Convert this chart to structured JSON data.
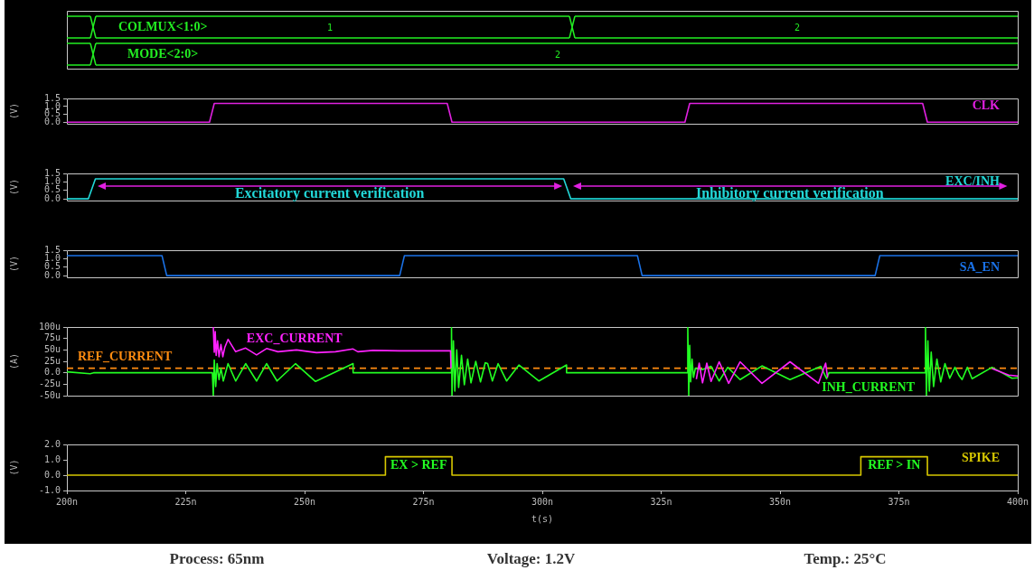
{
  "chart_data": [
    {
      "type": "other",
      "annotations": [
        "COLMUX<1:0>",
        "1",
        "2",
        "MODE<2:0>",
        "2"
      ]
    },
    {
      "type": "line",
      "ylabel": "(V)",
      "xlim": [
        200,
        400
      ],
      "ylim": [
        -0.1,
        1.52
      ],
      "tick_labels": "y",
      "marker": "none",
      "line_style": "solid",
      "yticks": [
        {
          "value": 0,
          "label": "0.0"
        },
        {
          "value": 0.5,
          "label": "0.5"
        },
        {
          "value": 1,
          "label": "1.0"
        },
        {
          "value": 1.5,
          "label": "1.5"
        }
      ],
      "series": [
        {
          "name": "CLK",
          "color": "#e020e0",
          "x": [
            200,
            230,
            231,
            280,
            281,
            330,
            331,
            380,
            381,
            400
          ],
          "values": [
            0,
            0,
            1.2,
            1.2,
            0,
            0,
            1.2,
            1.2,
            0,
            0
          ]
        }
      ]
    },
    {
      "type": "line",
      "ylabel": "(V)",
      "xlim": [
        200,
        400
      ],
      "ylim": [
        -0.1,
        1.52
      ],
      "tick_labels": "y",
      "marker": "none",
      "line_style": "solid",
      "yticks": [
        {
          "value": 0,
          "label": "0.0"
        },
        {
          "value": 0.5,
          "label": "0.5"
        },
        {
          "value": 1,
          "label": "1.0"
        },
        {
          "value": 1.5,
          "label": "1.5"
        }
      ],
      "annotations": [
        "Excitatory current verification",
        "Inhibitory current verification"
      ],
      "series": [
        {
          "name": "EXC/INH",
          "color": "#22d8d8",
          "x": [
            200,
            204.5,
            206,
            304.5,
            306,
            400
          ],
          "values": [
            0,
            0,
            1.2,
            1.2,
            0,
            0
          ]
        }
      ]
    },
    {
      "type": "line",
      "ylabel": "(V)",
      "xlim": [
        200,
        400
      ],
      "ylim": [
        -0.1,
        1.52
      ],
      "tick_labels": "y",
      "marker": "none",
      "line_style": "solid",
      "yticks": [
        {
          "value": 0,
          "label": "0.0"
        },
        {
          "value": 0.5,
          "label": "0.5"
        },
        {
          "value": 1,
          "label": "1.0"
        },
        {
          "value": 1.5,
          "label": "1.5"
        }
      ],
      "series": [
        {
          "name": "SA_EN",
          "color": "#1a72e8",
          "x": [
            200,
            220,
            221,
            270,
            271,
            320,
            321,
            370,
            371,
            400
          ],
          "values": [
            1.2,
            1.2,
            0,
            0,
            1.2,
            1.2,
            0,
            0,
            1.2,
            1.2
          ]
        }
      ]
    },
    {
      "type": "line",
      "ylabel": "(A)",
      "xlim": [
        200,
        400
      ],
      "ylim": [
        -50,
        100
      ],
      "tick_labels": "y",
      "marker": "none",
      "line_style": "solid",
      "yticks": [
        {
          "value": -50,
          "label": "-50u"
        },
        {
          "value": -25,
          "label": "-25u"
        },
        {
          "value": 0,
          "label": "0.0"
        },
        {
          "value": 25,
          "label": "25u"
        },
        {
          "value": 50,
          "label": "50u"
        },
        {
          "value": 75,
          "label": "75u"
        },
        {
          "value": 100,
          "label": "100u"
        }
      ],
      "ref_lines": [
        {
          "axis": "y",
          "value": 10,
          "label": "REF_CURRENT",
          "color": "#ff8c10",
          "line_style": "dashed"
        }
      ],
      "series": [
        {
          "name": "EXC_CURRENT",
          "color": "#ff22ff",
          "x": [
            230.8,
            231.0,
            231.2,
            231.4,
            231.7,
            232.0,
            232.4,
            232.8,
            233.2,
            233.9,
            235.5,
            237.6,
            239.9,
            242.0,
            244.4,
            248.3,
            252.5,
            256.5,
            260.2,
            261.2,
            264.4,
            270,
            280.7,
            280.8,
            290,
            331.3,
            332.4,
            333.0,
            333.7,
            334.6,
            335.5,
            337.2,
            339.2,
            341.6,
            346.2,
            352.1,
            358.1,
            359.6,
            360.0,
            370,
            388.3,
            389.4,
            390.4,
            394.6,
            398.1,
            400
          ],
          "values": [
            100,
            45,
            90,
            38,
            70,
            35,
            62,
            35,
            55,
            73,
            46,
            54,
            39,
            53,
            46,
            50,
            44,
            46,
            52,
            46,
            49,
            48,
            48,
            10,
            null,
            null,
            -14,
            21,
            -22,
            21,
            -19,
            24,
            -23,
            24,
            -23,
            24,
            -23,
            21,
            -10,
            null,
            null,
            null,
            null,
            9,
            -5,
            -7
          ]
        },
        {
          "name": "INH_CURRENT",
          "color": "#22ff22",
          "x": [
            200,
            204.9,
            205.6,
            230.6,
            230.8,
            231.0,
            231.3,
            231.6,
            232.0,
            232.4,
            232.9,
            233.9,
            235.5,
            237.6,
            239.9,
            242.0,
            244.2,
            248.1,
            252.3,
            260.2,
            260.2,
            280.8,
            280.9,
            281.0,
            281.3,
            281.6,
            282.0,
            282.4,
            283.0,
            283.6,
            284.3,
            285.0,
            286.0,
            287.0,
            288.0,
            288.5,
            289.5,
            290.7,
            292.5,
            295.1,
            299.3,
            305.1,
            305.1,
            330.5,
            330.6,
            330.8,
            331.0,
            331.2,
            331.5,
            331.8,
            332.2,
            333.7,
            335.5,
            337.2,
            339.0,
            341.6,
            346.2,
            352.1,
            358.6,
            359.8,
            360.3,
            380.5,
            380.6,
            380.8,
            381.1,
            381.4,
            381.8,
            382.3,
            383.0,
            383.8,
            384.7,
            385.7,
            386.8,
            387.6,
            388.3,
            389.4,
            390.4,
            394.6,
            398.8,
            400
          ],
          "values": [
            2,
            -2,
            0,
            0,
            -50,
            28,
            -30,
            20,
            -15,
            10,
            -18,
            20,
            -18,
            20,
            -18,
            20,
            -18,
            20,
            -19,
            20,
            0,
            0,
            100,
            -50,
            70,
            -40,
            50,
            -32,
            38,
            -26,
            30,
            -22,
            25,
            -20,
            22,
            20,
            -18,
            20,
            -18,
            17,
            -18,
            17,
            0,
            0,
            100,
            -50,
            60,
            -20,
            30,
            -10,
            10,
            7,
            14,
            -18,
            12,
            -15,
            15,
            -15,
            14,
            -13,
            0,
            0,
            100,
            -50,
            70,
            -40,
            45,
            -30,
            30,
            -20,
            20,
            -12,
            12,
            -5,
            -15,
            12,
            -13,
            12,
            -12,
            -11
          ]
        }
      ]
    },
    {
      "type": "line",
      "ylabel": "(V)",
      "xlabel": "t(s)",
      "xlim": [
        200,
        400
      ],
      "ylim": [
        -1,
        2
      ],
      "marker": "none",
      "line_style": "solid",
      "xticks": [
        {
          "value": 200,
          "label": "200n"
        },
        {
          "value": 225,
          "label": "225n"
        },
        {
          "value": 250,
          "label": "250n"
        },
        {
          "value": 275,
          "label": "275n"
        },
        {
          "value": 300,
          "label": "300n"
        },
        {
          "value": 325,
          "label": "325n"
        },
        {
          "value": 350,
          "label": "350n"
        },
        {
          "value": 375,
          "label": "375n"
        },
        {
          "value": 400,
          "label": "400n"
        }
      ],
      "yticks": [
        {
          "value": -1,
          "label": "-1.0"
        },
        {
          "value": 0,
          "label": "0.0"
        },
        {
          "value": 1,
          "label": "1.0"
        },
        {
          "value": 2,
          "label": "2.0"
        }
      ],
      "annotations": [
        {
          "text": "EX > REF",
          "x": 274,
          "y": 1.2
        },
        {
          "text": "REF > IN",
          "x": 374,
          "y": 1.2
        }
      ],
      "series": [
        {
          "name": "SPIKE",
          "color": "#d8c800",
          "x": [
            200,
            267,
            267,
            281,
            281,
            367,
            367,
            381,
            381,
            400
          ],
          "values": [
            0,
            0,
            1.2,
            1.2,
            0,
            0,
            1.2,
            1.2,
            0,
            0
          ]
        }
      ]
    },
    {
      "type": "other",
      "annotations": [
        "Process: 65nm",
        "Voltage: 1.2V",
        "Temp.: 25°C"
      ]
    }
  ]
}
